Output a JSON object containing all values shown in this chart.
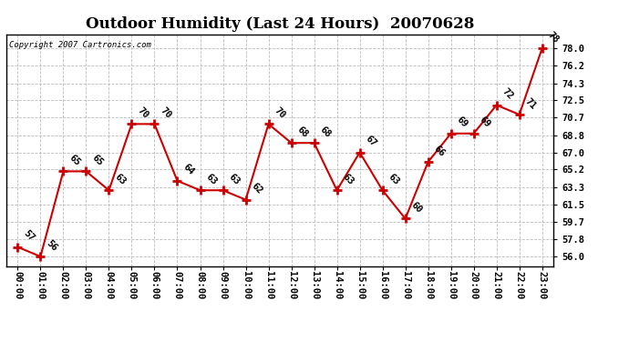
{
  "title": "Outdoor Humidity (Last 24 Hours)  20070628",
  "copyright": "Copyright 2007 Cartronics.com",
  "hours": [
    "00:00",
    "01:00",
    "02:00",
    "03:00",
    "04:00",
    "05:00",
    "06:00",
    "07:00",
    "08:00",
    "09:00",
    "10:00",
    "11:00",
    "12:00",
    "13:00",
    "14:00",
    "15:00",
    "16:00",
    "17:00",
    "18:00",
    "19:00",
    "20:00",
    "21:00",
    "22:00",
    "23:00"
  ],
  "values": [
    57,
    56,
    65,
    65,
    63,
    70,
    70,
    64,
    63,
    63,
    62,
    70,
    68,
    68,
    63,
    67,
    63,
    60,
    66,
    69,
    69,
    72,
    71,
    78
  ],
  "labels": [
    "57",
    "56",
    "65",
    "65",
    "63",
    "70",
    "70",
    "64",
    "63",
    "63",
    "62",
    "70",
    "68",
    "68",
    "63",
    "67",
    "63",
    "60",
    "66",
    "69",
    "69",
    "72",
    "71",
    "78"
  ],
  "line_color": "#cc0000",
  "marker_color": "#cc0000",
  "background_color": "#ffffff",
  "grid_color": "#bbbbbb",
  "title_fontsize": 12,
  "ylim_low": 55.0,
  "ylim_high": 79.5,
  "yticks": [
    56.0,
    57.8,
    59.7,
    61.5,
    63.3,
    65.2,
    67.0,
    68.8,
    70.7,
    72.5,
    74.3,
    76.2,
    78.0
  ]
}
